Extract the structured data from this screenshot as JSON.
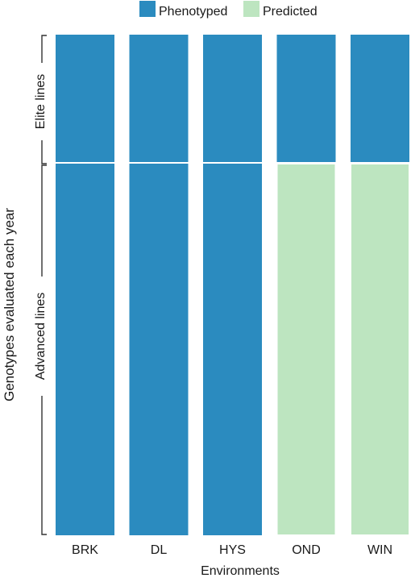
{
  "legend": [
    {
      "label": "Phenotyped",
      "color": "#2b8bbf"
    },
    {
      "label": "Predicted",
      "color": "#bde5c0"
    }
  ],
  "y_axis_title": "Genotypes evaluated each year",
  "x_axis_title": "Environments",
  "groups": [
    {
      "label": "Elite lines"
    },
    {
      "label": "Advanced lines"
    }
  ],
  "chart_data": {
    "type": "bar",
    "categories": [
      "BRK",
      "DL",
      "HYS",
      "OND",
      "WIN"
    ],
    "series": [
      {
        "name": "Elite lines",
        "status": [
          "Phenotyped",
          "Phenotyped",
          "Phenotyped",
          "Phenotyped",
          "Phenotyped"
        ]
      },
      {
        "name": "Advanced lines",
        "status": [
          "Phenotyped",
          "Phenotyped",
          "Phenotyped",
          "Predicted",
          "Predicted"
        ]
      }
    ],
    "xlabel": "Environments",
    "ylabel": "Genotypes evaluated each year"
  }
}
